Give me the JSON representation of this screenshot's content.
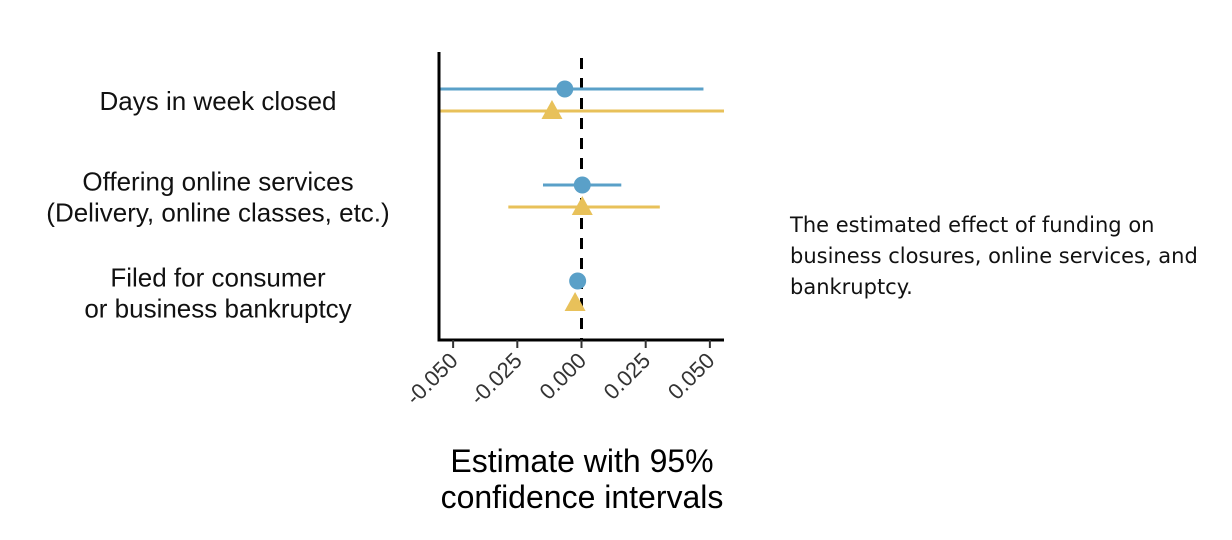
{
  "chart_data": {
    "type": "scatter",
    "subtype": "coefficient-plot",
    "categories": [
      [
        "Days in week closed"
      ],
      [
        "Offering online services",
        "(Delivery, online classes, etc.)"
      ],
      [
        "Filed for consumer",
        "or business bankruptcy"
      ]
    ],
    "series": [
      {
        "marker": "circle",
        "color": "#5aa0c8",
        "estimates": [
          -0.0065,
          0.0003,
          -0.0015
        ],
        "ci_low": [
          -0.0555,
          -0.015,
          null
        ],
        "ci_high": [
          0.0475,
          0.0155,
          null
        ]
      },
      {
        "marker": "triangle",
        "color": "#e8c15a",
        "estimates": [
          -0.0115,
          0.0003,
          -0.0025
        ],
        "ci_low": [
          -0.0555,
          -0.0285,
          null
        ],
        "ci_high": [
          0.0555,
          0.0305,
          null
        ]
      }
    ],
    "xticks": [
      "-0.050",
      "-0.025",
      "0.000",
      "0.025",
      "0.050"
    ],
    "xtick_values": [
      -0.05,
      -0.025,
      0,
      0.025,
      0.05
    ],
    "xlim": [
      -0.0555,
      0.0555
    ],
    "reference_line": 0,
    "xlabel": [
      "Estimate with 95%",
      "confidence intervals"
    ],
    "ylabel": "",
    "grid": false,
    "legend": "none"
  },
  "caption": "The estimated effect of funding on business closures, online services, and bankruptcy."
}
